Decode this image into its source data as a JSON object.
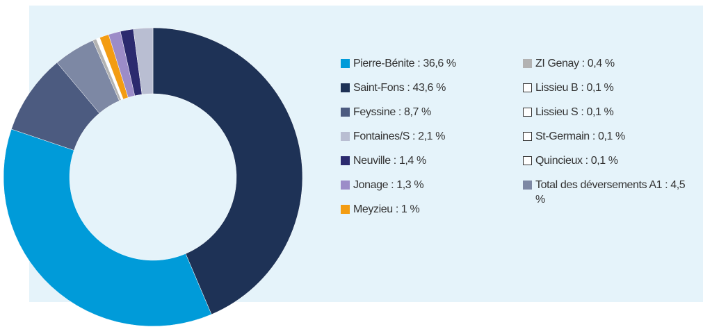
{
  "chart_data": {
    "type": "donut",
    "categories": [
      "Saint-Fons",
      "Pierre-Bénite",
      "Feyssine",
      "Total des déversements A1",
      "ZI Genay",
      "Lissieu B",
      "Lissieu S",
      "St-Germain",
      "Quincieux",
      "Meyzieu",
      "Jonage",
      "Neuville",
      "Fontaines/S"
    ],
    "values": [
      43.6,
      36.6,
      8.7,
      4.5,
      0.4,
      0.1,
      0.1,
      0.1,
      0.1,
      1,
      1.3,
      1.4,
      2.1
    ],
    "value_labels": [
      "43,6 %",
      "36,6 %",
      "8,7 %",
      "4,5 %",
      "0,4 %",
      "0,1 %",
      "0,1 %",
      "0,1 %",
      "0,1 %",
      "1 %",
      "1,3 %",
      "1,4 %",
      "2,1 %"
    ],
    "colors": [
      "#1e3256",
      "#009bd9",
      "#4c5b80",
      "#7d88a4",
      "#b2b2b2",
      "#ffffff",
      "#ffffff",
      "#ffffff",
      "#ffffff",
      "#f39c12",
      "#9c8cc8",
      "#2b2a6e",
      "#b9bed2"
    ]
  }
}
